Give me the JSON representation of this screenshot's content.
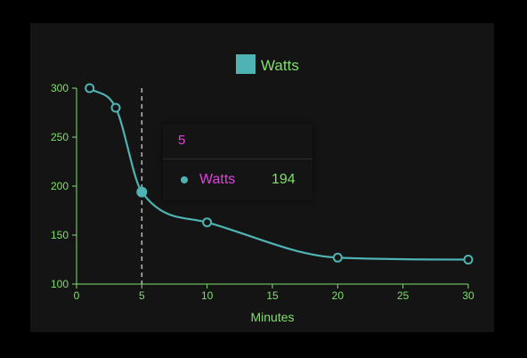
{
  "colors": {
    "series": "#4fb3b3",
    "axis": "#7ee06a",
    "tooltip_title": "#e040e0",
    "tooltip_name": "#e040e0",
    "tooltip_value": "#7ee06a",
    "crosshair": "#bbbbbb",
    "panel": "#141414"
  },
  "chart_data": {
    "type": "line",
    "title": "",
    "xlabel": "Minutes",
    "ylabel": "",
    "xlim": [
      0,
      30
    ],
    "ylim": [
      100,
      300
    ],
    "xticks": [
      0,
      5,
      10,
      15,
      20,
      25,
      30
    ],
    "yticks": [
      100,
      150,
      200,
      250,
      300
    ],
    "legend": {
      "position": "top-center",
      "entries": [
        "Watts"
      ]
    },
    "grid": false,
    "series": [
      {
        "name": "Watts",
        "x": [
          1,
          3,
          5,
          10,
          20,
          30
        ],
        "y": [
          300,
          280,
          194,
          163,
          127,
          125
        ]
      }
    ],
    "active_x": 5
  },
  "tooltip": {
    "title": "5",
    "series_name": "Watts",
    "value": "194"
  }
}
